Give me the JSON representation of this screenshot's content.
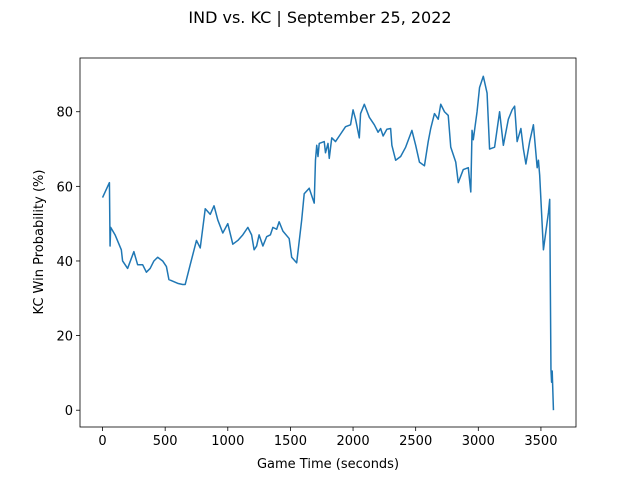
{
  "chart_data": {
    "type": "line",
    "title": "IND vs. KC | September 25, 2022",
    "xlabel": "Game Time (seconds)",
    "ylabel": "KC Win Probability (%)",
    "color": "#1f77b4",
    "xlim": [
      -180,
      3780
    ],
    "ylim": [
      -4.5,
      94.4
    ],
    "xticks": [
      0,
      500,
      1000,
      1500,
      2000,
      2500,
      3000,
      3500
    ],
    "yticks": [
      0,
      20,
      40,
      60,
      80
    ],
    "x": [
      0,
      55,
      60,
      65,
      100,
      150,
      160,
      200,
      250,
      280,
      320,
      350,
      380,
      410,
      440,
      480,
      510,
      530,
      600,
      640,
      660,
      700,
      750,
      780,
      820,
      860,
      890,
      920,
      960,
      1000,
      1040,
      1080,
      1120,
      1160,
      1190,
      1210,
      1230,
      1250,
      1280,
      1310,
      1340,
      1360,
      1390,
      1410,
      1440,
      1490,
      1510,
      1550,
      1590,
      1610,
      1650,
      1690,
      1700,
      1710,
      1720,
      1730,
      1770,
      1780,
      1800,
      1810,
      1830,
      1860,
      1900,
      1940,
      1980,
      2000,
      2020,
      2050,
      2060,
      2090,
      2130,
      2170,
      2200,
      2220,
      2240,
      2270,
      2300,
      2310,
      2340,
      2380,
      2420,
      2470,
      2500,
      2530,
      2570,
      2600,
      2620,
      2650,
      2680,
      2700,
      2730,
      2760,
      2780,
      2820,
      2840,
      2880,
      2920,
      2940,
      2950,
      2960,
      2990,
      3010,
      3040,
      3070,
      3090,
      3130,
      3170,
      3200,
      3240,
      3270,
      3290,
      3310,
      3340,
      3360,
      3380,
      3410,
      3440,
      3470,
      3480,
      3490,
      3520,
      3560,
      3570,
      3580,
      3585,
      3590,
      3600
    ],
    "y": [
      57,
      61,
      44,
      49,
      47,
      43,
      40,
      38,
      42.5,
      39,
      39,
      37,
      38,
      40,
      41,
      40,
      38.5,
      35,
      34,
      33.7,
      33.7,
      39,
      45.5,
      43.5,
      54,
      52.5,
      54.8,
      51,
      47.5,
      50,
      44.5,
      45.5,
      47,
      49,
      47,
      43,
      44,
      47,
      44,
      46.5,
      47,
      49,
      48.5,
      50.5,
      48,
      46,
      41,
      39.5,
      51,
      58,
      59.5,
      55.5,
      67,
      71,
      68,
      71.5,
      72,
      69,
      71.5,
      67.5,
      73,
      72,
      74,
      76,
      76.5,
      80.5,
      78,
      73,
      79.5,
      82,
      78.5,
      76.5,
      74.5,
      75.5,
      73.5,
      75.3,
      75.5,
      71,
      67,
      68,
      70.5,
      75,
      71,
      66.5,
      65.5,
      72,
      75.5,
      79.5,
      78,
      82,
      80,
      79,
      70.5,
      66.5,
      61,
      64.5,
      65,
      58.5,
      75,
      72.5,
      80,
      86.5,
      89.5,
      85,
      70,
      70.5,
      80,
      71,
      78,
      80.5,
      81.5,
      72,
      75.5,
      70,
      66,
      72,
      76.5,
      65,
      67,
      63,
      43,
      53,
      56.5,
      11,
      7.5,
      10.5,
      0
    ]
  }
}
